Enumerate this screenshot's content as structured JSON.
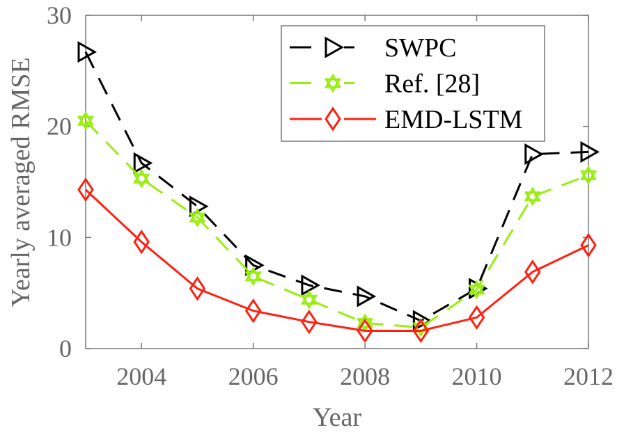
{
  "chart_data": {
    "type": "line",
    "title": "",
    "xlabel": "Year",
    "ylabel": "Yearly averaged RMSE",
    "xlim": [
      2003,
      2012
    ],
    "ylim": [
      0,
      30
    ],
    "xticks": [
      2004,
      2006,
      2008,
      2010,
      2012
    ],
    "xtick_labels": [
      "2004",
      "2006",
      "2008",
      "2010",
      "2012"
    ],
    "yticks": [
      0,
      10,
      20,
      30
    ],
    "ytick_labels": [
      "0",
      "10",
      "20",
      "30"
    ],
    "grid": false,
    "legend_position": "top-right",
    "x": [
      2003,
      2004,
      2005,
      2006,
      2007,
      2008,
      2009,
      2010,
      2011,
      2012
    ],
    "series": [
      {
        "name": "SWPC",
        "color": "#000000",
        "dash": "dashed",
        "marker": "triangle-right",
        "values": [
          26.7,
          16.7,
          12.8,
          7.5,
          5.7,
          4.7,
          2.5,
          5.4,
          17.5,
          17.7
        ]
      },
      {
        "name": "Ref. [28]",
        "color": "#99ee11",
        "dash": "dashed",
        "marker": "hexagram",
        "values": [
          20.5,
          15.3,
          11.8,
          6.5,
          4.4,
          2.3,
          1.9,
          5.3,
          13.7,
          15.6
        ]
      },
      {
        "name": "EMD-LSTM",
        "color": "#ff2010",
        "dash": "solid",
        "marker": "diamond",
        "values": [
          14.3,
          9.6,
          5.4,
          3.4,
          2.4,
          1.6,
          1.6,
          2.8,
          6.9,
          9.3
        ]
      }
    ]
  }
}
